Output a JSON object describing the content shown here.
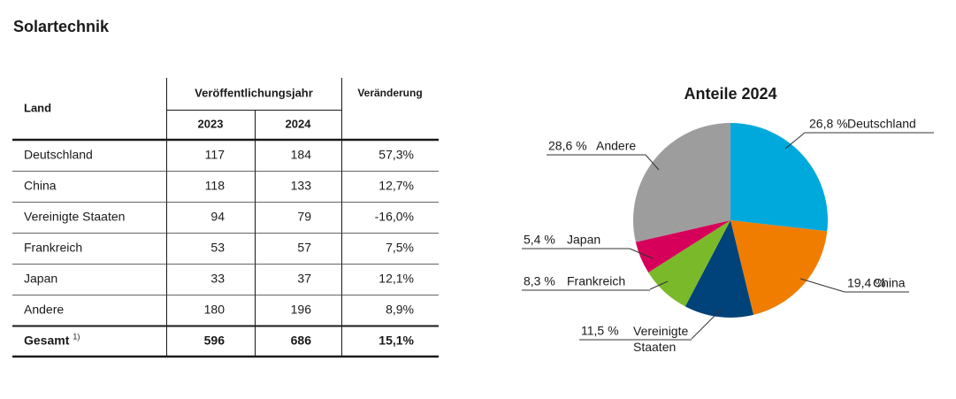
{
  "title": "Solartechnik",
  "table": {
    "header": {
      "land": "Land",
      "group": "Veröffentlichungsjahr",
      "years": [
        "2023",
        "2024"
      ],
      "change": "Veränderung"
    },
    "rows": [
      [
        "Deutschland",
        "117",
        "184",
        "57,3%"
      ],
      [
        "China",
        "118",
        "133",
        "12,7%"
      ],
      [
        "Vereinigte Staaten",
        "94",
        "79",
        "-16,0%"
      ],
      [
        "Frankreich",
        "53",
        "57",
        "7,5%"
      ],
      [
        "Japan",
        "33",
        "37",
        "12,1%"
      ],
      [
        "Andere",
        "180",
        "196",
        "8,9%"
      ]
    ],
    "total": {
      "label": "Gesamt",
      "footnote": "1)",
      "cells": [
        "596",
        "686",
        "15,1%"
      ]
    }
  },
  "chart_data": {
    "type": "pie",
    "title": "Anteile 2024",
    "categories": [
      "Deutschland",
      "China",
      "Vereinigte Staaten",
      "Frankreich",
      "Japan",
      "Andere"
    ],
    "values": [
      26.8,
      19.4,
      11.5,
      8.3,
      5.4,
      28.6
    ],
    "value_labels": [
      "26,8 %",
      "19,4 %",
      "11,5 %",
      "8,3 %",
      "5,4 %",
      "28,6 %"
    ],
    "colors": [
      "#00a9dc",
      "#f07d00",
      "#00427a",
      "#7ab929",
      "#d6005b",
      "#9d9d9d"
    ]
  }
}
